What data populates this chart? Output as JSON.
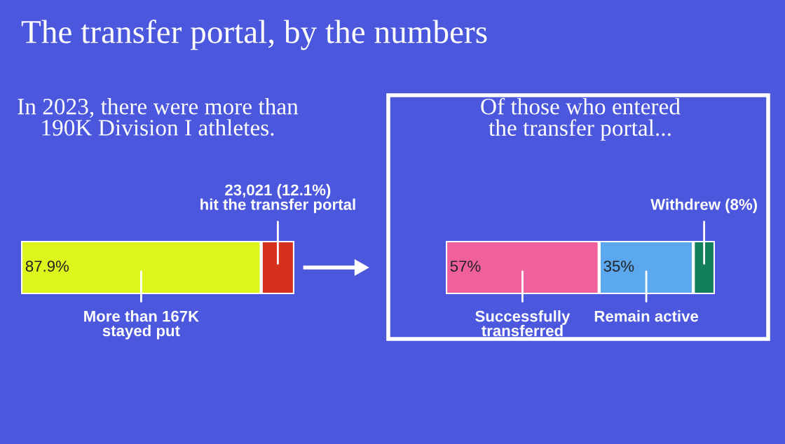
{
  "chart_data": [
    {
      "type": "bar",
      "orientation": "horizontal",
      "stacked": true,
      "title": "The transfer portal, by the numbers",
      "subtitle": "In 2023, there were more than\n190K Division I athletes.",
      "xlim": [
        0,
        100
      ],
      "tick_labels": false,
      "categories": [
        null
      ],
      "series": [
        {
          "name": "More than 167K\nstayed put",
          "color": "#dcf51c",
          "values": [
            87.9
          ],
          "value_labels": [
            "87.9%"
          ]
        },
        {
          "name": "23,021 (12.1%)\nhit the transfer portal",
          "color": "#d6301f",
          "values": [
            12.1
          ],
          "value_labels": [
            null
          ]
        }
      ]
    },
    {
      "type": "bar",
      "orientation": "horizontal",
      "stacked": true,
      "title": "Of those who entered\nthe transfer portal...",
      "xlim": [
        0,
        100
      ],
      "tick_labels": false,
      "categories": [
        null
      ],
      "series": [
        {
          "name": "Successfully\ntransferred",
          "color": "#f0609c",
          "values": [
            57
          ],
          "value_labels": [
            "57%"
          ]
        },
        {
          "name": "Remain active",
          "color": "#5ca8ee",
          "values": [
            35
          ],
          "value_labels": [
            "35%"
          ]
        },
        {
          "name": "Withdrew (8%)",
          "color": "#12805c",
          "values": [
            8
          ],
          "value_labels": [
            null
          ]
        }
      ]
    }
  ]
}
